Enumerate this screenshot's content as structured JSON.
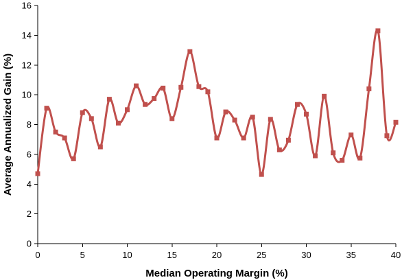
{
  "chart_data": {
    "type": "line",
    "smoothed": true,
    "title": "",
    "xlabel": "Median Operating Margin (%)",
    "ylabel": "Average Annualized Gain (%)",
    "xlim": [
      0,
      40
    ],
    "ylim": [
      0,
      16
    ],
    "xticks": [
      0,
      5,
      10,
      15,
      20,
      25,
      30,
      35,
      40
    ],
    "yticks": [
      0,
      2,
      4,
      6,
      8,
      10,
      12,
      14,
      16
    ],
    "grid": false,
    "legend": "none",
    "series_color": "#c0504d",
    "marker": "square",
    "x": [
      0,
      1,
      2,
      3,
      4,
      5,
      6,
      7,
      8,
      9,
      10,
      11,
      12,
      13,
      14,
      15,
      16,
      17,
      18,
      19,
      20,
      21,
      22,
      23,
      24,
      25,
      26,
      27,
      28,
      29,
      30,
      31,
      32,
      33,
      34,
      35,
      36,
      37,
      38,
      39,
      40
    ],
    "y": [
      4.7,
      9.1,
      7.5,
      7.1,
      5.7,
      8.8,
      8.4,
      6.5,
      9.7,
      8.1,
      9.0,
      10.6,
      9.35,
      9.75,
      10.45,
      8.4,
      10.5,
      12.9,
      10.55,
      10.2,
      7.1,
      8.85,
      8.3,
      7.1,
      8.5,
      4.65,
      8.35,
      6.3,
      6.95,
      9.35,
      8.7,
      5.9,
      9.9,
      6.1,
      5.6,
      7.3,
      5.75,
      10.4,
      14.3,
      7.25,
      8.15
    ]
  }
}
